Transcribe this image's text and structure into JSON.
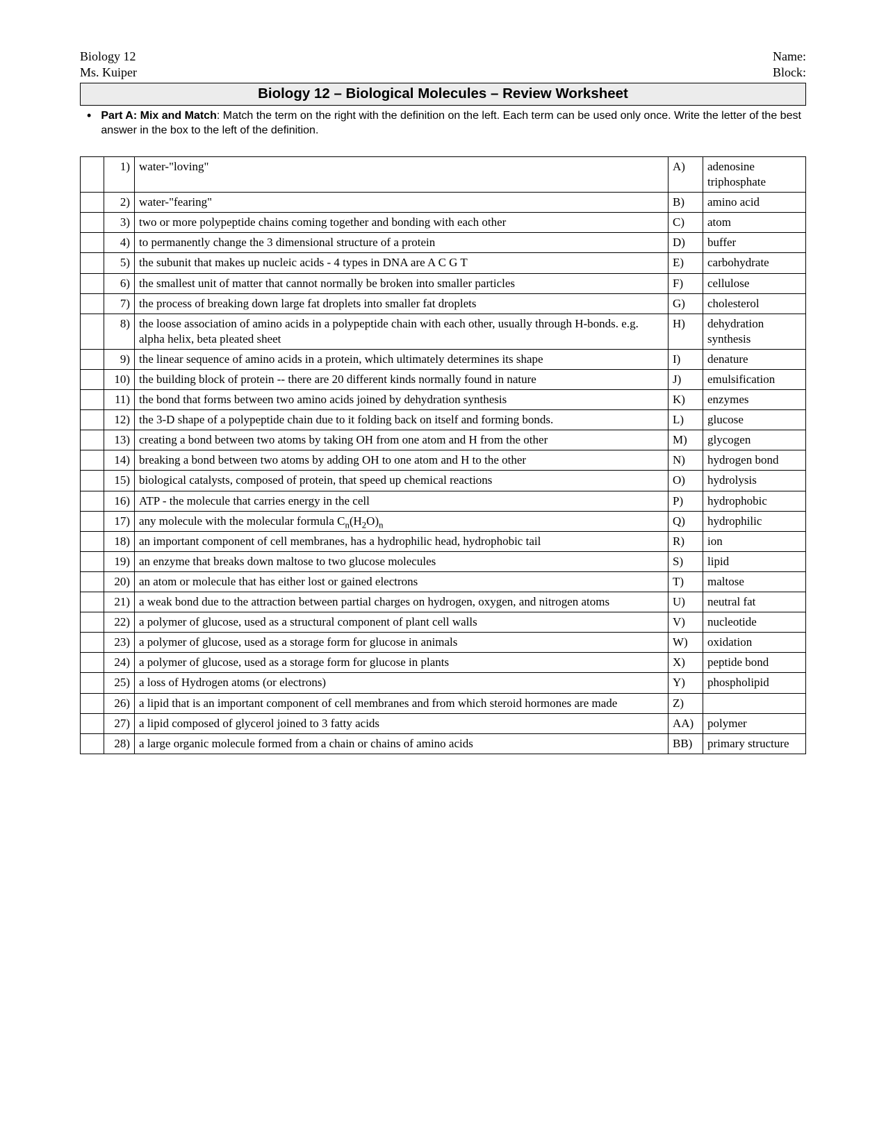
{
  "header": {
    "course": "Biology 12",
    "teacher": "Ms. Kuiper",
    "name_label": "Name:",
    "block_label": "Block:"
  },
  "title": "Biology 12 – Biological Molecules – Review Worksheet",
  "instructions": {
    "part_label": "Part A: Mix and Match",
    "text": ":  Match the term on the right with the definition on the left.  Each term can be used only once.  Write the letter of the best answer in the box to the left of the definition."
  },
  "rows": [
    {
      "n": "1)",
      "def": "water-\"loving\"",
      "let": "A)",
      "term": "adenosine triphosphate"
    },
    {
      "n": "2)",
      "def": "water-\"fearing\"",
      "let": "B)",
      "term": "amino acid"
    },
    {
      "n": "3)",
      "def": "two or more polypeptide chains coming together and bonding with each other",
      "let": "C)",
      "term": "atom"
    },
    {
      "n": "4)",
      "def": "to permanently change the 3 dimensional structure of a protein",
      "let": "D)",
      "term": "buffer"
    },
    {
      "n": "5)",
      "def": "the subunit that makes up nucleic acids - 4 types in DNA are A C G T",
      "let": "E)",
      "term": "carbohydrate"
    },
    {
      "n": "6)",
      "def": "the smallest unit of matter that cannot normally be broken into smaller particles",
      "let": "F)",
      "term": "cellulose"
    },
    {
      "n": "7)",
      "def": "the process of breaking down large fat droplets into smaller fat droplets",
      "let": "G)",
      "term": "cholesterol"
    },
    {
      "n": "8)",
      "def": "the loose association of amino acids in a polypeptide chain with each other, usually through H-bonds.  e.g. alpha helix, beta pleated sheet",
      "let": "H)",
      "term": "dehydration synthesis"
    },
    {
      "n": "9)",
      "def": "the linear sequence of amino acids in a protein, which ultimately determines its shape",
      "let": "I)",
      "term": "denature"
    },
    {
      "n": "10)",
      "def": "the building block of protein -- there are 20 different kinds normally found in nature",
      "let": "J)",
      "term": "emulsification"
    },
    {
      "n": "11)",
      "def": "the bond that forms between two amino acids joined by dehydration synthesis",
      "let": "K)",
      "term": "enzymes"
    },
    {
      "n": "12)",
      "def": "the 3-D shape of a polypeptide chain due to it folding back on itself and forming bonds.",
      "let": "L)",
      "term": "glucose"
    },
    {
      "n": "13)",
      "def": "creating a bond between two atoms by taking OH from one atom and H from the other",
      "let": "M)",
      "term": "glycogen"
    },
    {
      "n": "14)",
      "def": "breaking a bond between two atoms by adding OH to one atom and H to the other",
      "let": "N)",
      "term": "hydrogen bond"
    },
    {
      "n": "15)",
      "def": "biological catalysts, composed of protein, that speed up chemical reactions",
      "let": "O)",
      "term": "hydrolysis"
    },
    {
      "n": "16)",
      "def": "ATP - the molecule that carries energy in the cell",
      "let": "P)",
      "term": "hydrophobic"
    },
    {
      "n": "17)",
      "def_html": "any molecule with the molecular formula C<span class=\"sub\">n</span>(H<span class=\"sub\">2</span>O)<span class=\"sub\">n</span>",
      "let": "Q)",
      "term": "hydrophilic"
    },
    {
      "n": "18)",
      "def": "an  important component of cell membranes, has a hydrophilic head, hydrophobic tail",
      "let": "R)",
      "term": "ion"
    },
    {
      "n": "19)",
      "def": "an enzyme that breaks down maltose to two glucose molecules",
      "let": "S)",
      "term": "lipid"
    },
    {
      "n": "20)",
      "def": "an atom or molecule that has either lost or gained electrons",
      "let": "T)",
      "term": "maltose"
    },
    {
      "n": "21)",
      "def": "a weak bond due to the attraction between partial charges on hydrogen, oxygen, and nitrogen atoms",
      "let": "U)",
      "term": "neutral fat"
    },
    {
      "n": "22)",
      "def": "a polymer of glucose, used as a structural component of plant cell walls",
      "let": "V)",
      "term": "nucleotide"
    },
    {
      "n": "23)",
      "def": "a polymer of glucose, used as a storage form for glucose in animals",
      "let": "W)",
      "term": "oxidation"
    },
    {
      "n": "24)",
      "def": "a polymer of glucose, used as a storage form for glucose in plants",
      "let": "X)",
      "term": "peptide bond"
    },
    {
      "n": "25)",
      "def": "a loss of Hydrogen atoms (or electrons)",
      "let": "Y)",
      "term": "phospholipid"
    },
    {
      "n": "26)",
      "def": "a lipid that is an important component of cell membranes and from which steroid hormones are made",
      "let": "Z)",
      "term": ""
    },
    {
      "n": "27)",
      "def": "a lipid composed of glycerol joined to 3 fatty acids",
      "let": "AA)",
      "term": "polymer"
    },
    {
      "n": "28)",
      "def": "a large organic molecule formed from a chain or chains of amino acids",
      "let": "BB)",
      "term": "primary structure"
    }
  ]
}
